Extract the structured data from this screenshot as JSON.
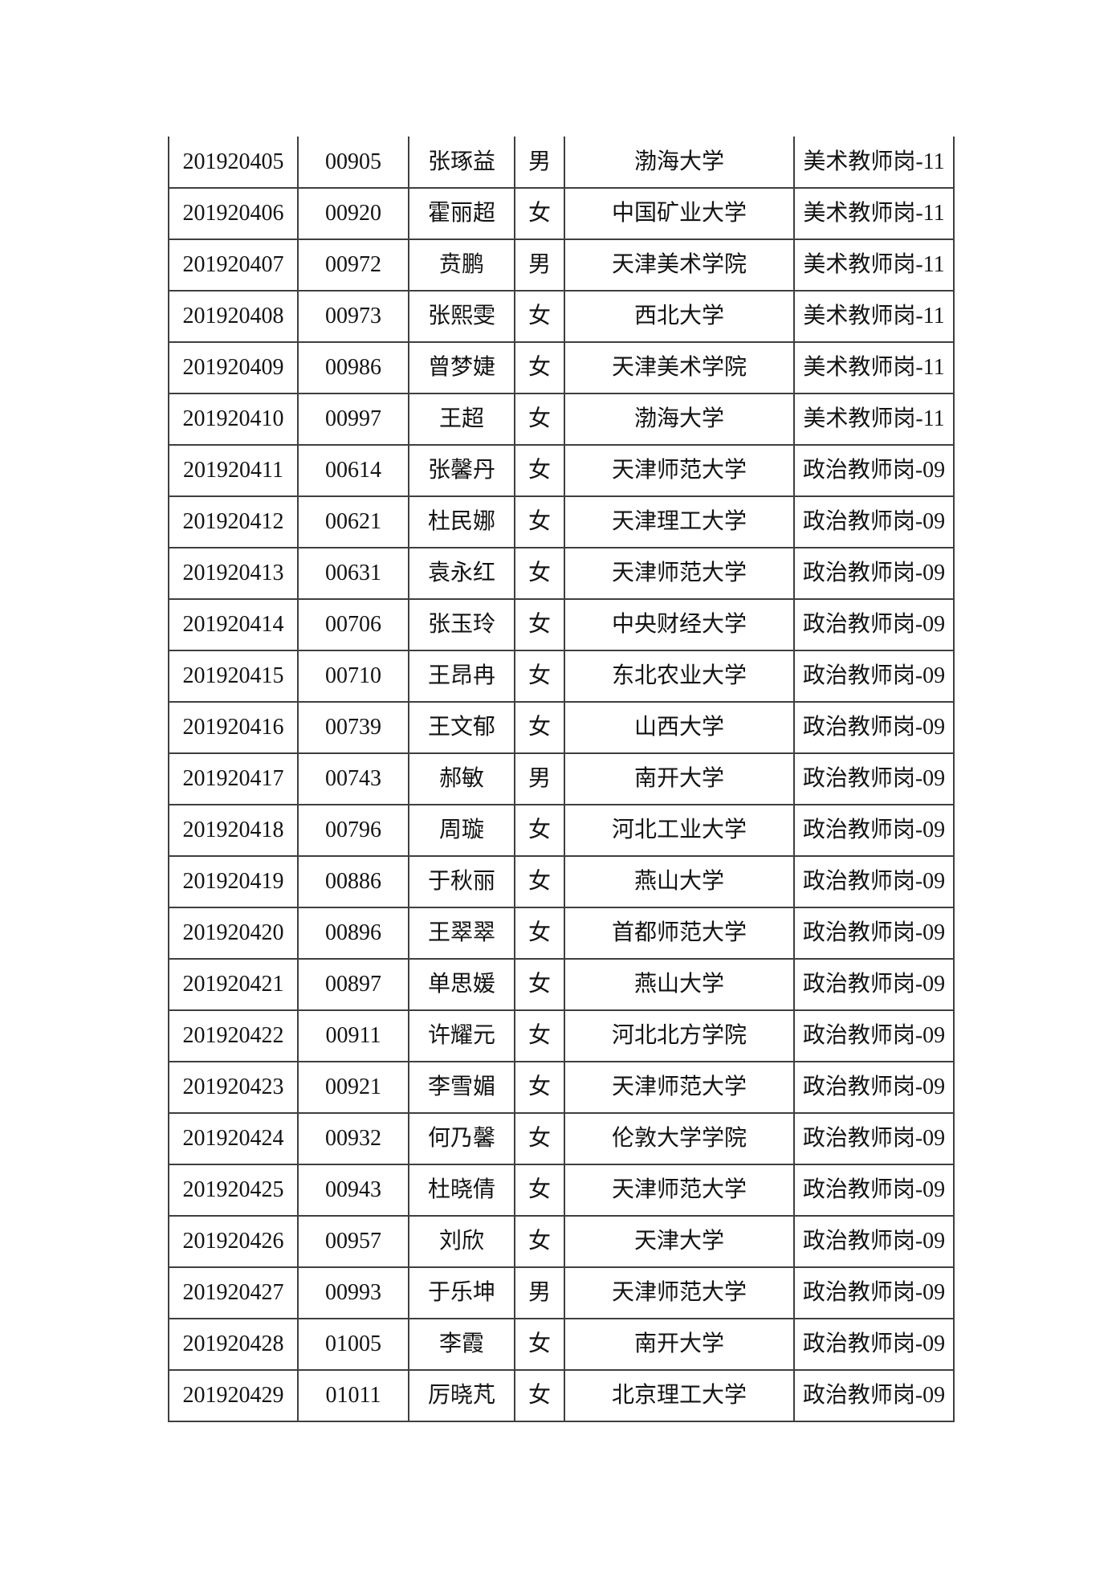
{
  "page": {
    "background_color": "#ffffff",
    "text_color": "#131313",
    "border_color": "#3f3f3f"
  },
  "table": {
    "rows": [
      [
        "201920405",
        "00905",
        "张琢益",
        "男",
        "渤海大学",
        "美术教师岗-11"
      ],
      [
        "201920406",
        "00920",
        "霍丽超",
        "女",
        "中国矿业大学",
        "美术教师岗-11"
      ],
      [
        "201920407",
        "00972",
        "贲鹏",
        "男",
        "天津美术学院",
        "美术教师岗-11"
      ],
      [
        "201920408",
        "00973",
        "张熙雯",
        "女",
        "西北大学",
        "美术教师岗-11"
      ],
      [
        "201920409",
        "00986",
        "曾梦婕",
        "女",
        "天津美术学院",
        "美术教师岗-11"
      ],
      [
        "201920410",
        "00997",
        "王超",
        "女",
        "渤海大学",
        "美术教师岗-11"
      ],
      [
        "201920411",
        "00614",
        "张馨丹",
        "女",
        "天津师范大学",
        "政治教师岗-09"
      ],
      [
        "201920412",
        "00621",
        "杜民娜",
        "女",
        "天津理工大学",
        "政治教师岗-09"
      ],
      [
        "201920413",
        "00631",
        "袁永红",
        "女",
        "天津师范大学",
        "政治教师岗-09"
      ],
      [
        "201920414",
        "00706",
        "张玉玲",
        "女",
        "中央财经大学",
        "政治教师岗-09"
      ],
      [
        "201920415",
        "00710",
        "王昂冉",
        "女",
        "东北农业大学",
        "政治教师岗-09"
      ],
      [
        "201920416",
        "00739",
        "王文郁",
        "女",
        "山西大学",
        "政治教师岗-09"
      ],
      [
        "201920417",
        "00743",
        "郝敏",
        "男",
        "南开大学",
        "政治教师岗-09"
      ],
      [
        "201920418",
        "00796",
        "周璇",
        "女",
        "河北工业大学",
        "政治教师岗-09"
      ],
      [
        "201920419",
        "00886",
        "于秋丽",
        "女",
        "燕山大学",
        "政治教师岗-09"
      ],
      [
        "201920420",
        "00896",
        "王翠翠",
        "女",
        "首都师范大学",
        "政治教师岗-09"
      ],
      [
        "201920421",
        "00897",
        "单思媛",
        "女",
        "燕山大学",
        "政治教师岗-09"
      ],
      [
        "201920422",
        "00911",
        "许耀元",
        "女",
        "河北北方学院",
        "政治教师岗-09"
      ],
      [
        "201920423",
        "00921",
        "李雪媚",
        "女",
        "天津师范大学",
        "政治教师岗-09"
      ],
      [
        "201920424",
        "00932",
        "何乃馨",
        "女",
        "伦敦大学学院",
        "政治教师岗-09"
      ],
      [
        "201920425",
        "00943",
        "杜晓倩",
        "女",
        "天津师范大学",
        "政治教师岗-09"
      ],
      [
        "201920426",
        "00957",
        "刘欣",
        "女",
        "天津大学",
        "政治教师岗-09"
      ],
      [
        "201920427",
        "00993",
        "于乐坤",
        "男",
        "天津师范大学",
        "政治教师岗-09"
      ],
      [
        "201920428",
        "01005",
        "李霞",
        "女",
        "南开大学",
        "政治教师岗-09"
      ],
      [
        "201920429",
        "01011",
        "厉晓芃",
        "女",
        "北京理工大学",
        "政治教师岗-09"
      ]
    ]
  }
}
